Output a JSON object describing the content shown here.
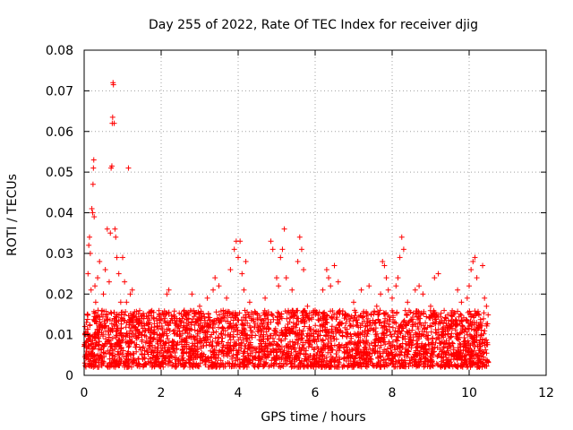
{
  "chart_data": {
    "type": "scatter",
    "title": "Day 255 of 2022, Rate Of TEC Index for receiver djig",
    "xlabel": "GPS time / hours",
    "ylabel": "ROTI / TECUs",
    "xlim": [
      0,
      12
    ],
    "ylim": [
      0,
      0.08
    ],
    "xticks": [
      0,
      2,
      4,
      6,
      8,
      10,
      12
    ],
    "yticks": [
      0,
      0.01,
      0.02,
      0.03,
      0.04,
      0.05,
      0.06,
      0.07,
      0.08
    ],
    "ytick_labels": [
      "0",
      "0.01",
      "0.02",
      "0.03",
      "0.04",
      "0.05",
      "0.06",
      "0.07",
      "0.08"
    ],
    "grid": true,
    "marker": "+",
    "color": "#ff0000",
    "series": [
      {
        "name": "ROTI",
        "points": [
          [
            0.02,
            0.012
          ],
          [
            0.05,
            0.008
          ],
          [
            0.08,
            0.015
          ],
          [
            0.1,
            0.025
          ],
          [
            0.12,
            0.032
          ],
          [
            0.14,
            0.034
          ],
          [
            0.16,
            0.03
          ],
          [
            0.18,
            0.021
          ],
          [
            0.2,
            0.041
          ],
          [
            0.22,
            0.04
          ],
          [
            0.23,
            0.047
          ],
          [
            0.24,
            0.051
          ],
          [
            0.25,
            0.053
          ],
          [
            0.26,
            0.039
          ],
          [
            0.28,
            0.022
          ],
          [
            0.3,
            0.018
          ],
          [
            0.32,
            0.01
          ],
          [
            0.35,
            0.024
          ],
          [
            0.4,
            0.028
          ],
          [
            0.45,
            0.015
          ],
          [
            0.5,
            0.02
          ],
          [
            0.55,
            0.026
          ],
          [
            0.6,
            0.036
          ],
          [
            0.65,
            0.023
          ],
          [
            0.68,
            0.035
          ],
          [
            0.7,
            0.051
          ],
          [
            0.72,
            0.0515
          ],
          [
            0.73,
            0.062
          ],
          [
            0.74,
            0.0635
          ],
          [
            0.75,
            0.072
          ],
          [
            0.76,
            0.0715
          ],
          [
            0.78,
            0.062
          ],
          [
            0.8,
            0.036
          ],
          [
            0.82,
            0.034
          ],
          [
            0.85,
            0.029
          ],
          [
            0.9,
            0.025
          ],
          [
            0.95,
            0.018
          ],
          [
            1.0,
            0.029
          ],
          [
            1.05,
            0.023
          ],
          [
            1.1,
            0.018
          ],
          [
            1.15,
            0.051
          ],
          [
            1.2,
            0.02
          ],
          [
            1.25,
            0.021
          ],
          [
            1.3,
            0.012
          ],
          [
            1.35,
            0.007
          ],
          [
            1.4,
            0.004
          ],
          [
            1.5,
            0.01
          ],
          [
            1.55,
            0.014
          ],
          [
            1.6,
            0.008
          ],
          [
            1.7,
            0.013
          ],
          [
            1.8,
            0.009
          ],
          [
            1.9,
            0.012
          ],
          [
            2.05,
            0.015
          ],
          [
            2.15,
            0.02
          ],
          [
            2.2,
            0.021
          ],
          [
            2.4,
            0.014
          ],
          [
            2.6,
            0.016
          ],
          [
            2.8,
            0.02
          ],
          [
            3.0,
            0.017
          ],
          [
            3.2,
            0.019
          ],
          [
            3.35,
            0.021
          ],
          [
            3.4,
            0.024
          ],
          [
            3.5,
            0.022
          ],
          [
            3.7,
            0.019
          ],
          [
            3.8,
            0.026
          ],
          [
            3.9,
            0.031
          ],
          [
            3.95,
            0.033
          ],
          [
            4.0,
            0.029
          ],
          [
            4.05,
            0.033
          ],
          [
            4.1,
            0.025
          ],
          [
            4.15,
            0.021
          ],
          [
            4.2,
            0.028
          ],
          [
            4.3,
            0.018
          ],
          [
            4.5,
            0.015
          ],
          [
            4.7,
            0.019
          ],
          [
            4.85,
            0.033
          ],
          [
            4.9,
            0.031
          ],
          [
            5.0,
            0.024
          ],
          [
            5.05,
            0.022
          ],
          [
            5.1,
            0.029
          ],
          [
            5.15,
            0.031
          ],
          [
            5.2,
            0.036
          ],
          [
            5.25,
            0.024
          ],
          [
            5.4,
            0.021
          ],
          [
            5.55,
            0.028
          ],
          [
            5.6,
            0.034
          ],
          [
            5.65,
            0.031
          ],
          [
            5.7,
            0.026
          ],
          [
            5.8,
            0.017
          ],
          [
            6.0,
            0.016
          ],
          [
            6.2,
            0.021
          ],
          [
            6.3,
            0.026
          ],
          [
            6.35,
            0.024
          ],
          [
            6.4,
            0.022
          ],
          [
            6.5,
            0.027
          ],
          [
            6.6,
            0.023
          ],
          [
            6.8,
            0.015
          ],
          [
            7.0,
            0.018
          ],
          [
            7.2,
            0.021
          ],
          [
            7.4,
            0.022
          ],
          [
            7.6,
            0.017
          ],
          [
            7.7,
            0.02
          ],
          [
            7.75,
            0.028
          ],
          [
            7.8,
            0.027
          ],
          [
            7.85,
            0.024
          ],
          [
            7.9,
            0.021
          ],
          [
            8.0,
            0.019
          ],
          [
            8.1,
            0.022
          ],
          [
            8.15,
            0.024
          ],
          [
            8.2,
            0.029
          ],
          [
            8.25,
            0.034
          ],
          [
            8.3,
            0.031
          ],
          [
            8.4,
            0.018
          ],
          [
            8.6,
            0.021
          ],
          [
            8.7,
            0.022
          ],
          [
            8.8,
            0.02
          ],
          [
            9.0,
            0.017
          ],
          [
            9.1,
            0.024
          ],
          [
            9.2,
            0.025
          ],
          [
            9.4,
            0.014
          ],
          [
            9.6,
            0.015
          ],
          [
            9.7,
            0.021
          ],
          [
            9.8,
            0.018
          ],
          [
            9.95,
            0.019
          ],
          [
            10.0,
            0.022
          ],
          [
            10.05,
            0.026
          ],
          [
            10.1,
            0.028
          ],
          [
            10.15,
            0.029
          ],
          [
            10.2,
            0.024
          ],
          [
            10.25,
            0.015
          ],
          [
            10.35,
            0.027
          ],
          [
            10.4,
            0.019
          ],
          [
            10.45,
            0.017
          ]
        ]
      }
    ],
    "band_summary": {
      "description": "Dense band of points between x = 0 and 10.5 hours",
      "band_min": 0.002,
      "band_max": 0.016,
      "x_start": 0,
      "x_end": 10.5
    }
  }
}
